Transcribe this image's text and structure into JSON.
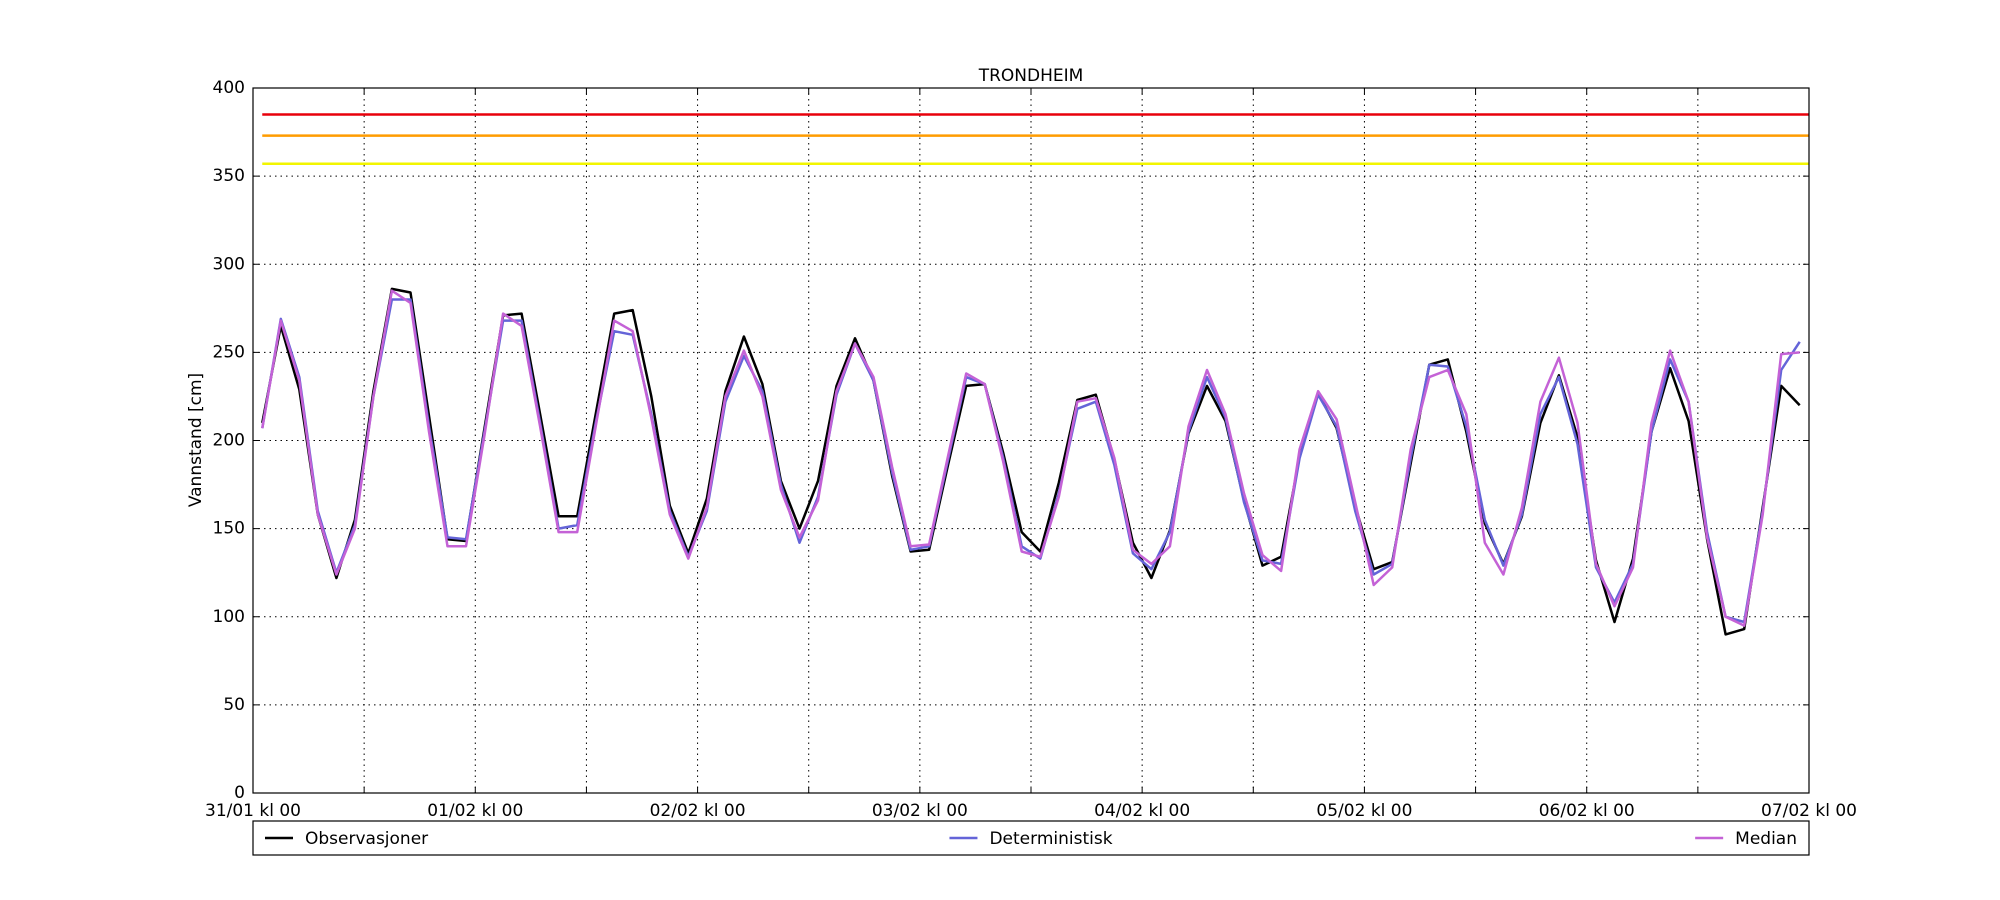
{
  "chart_data": {
    "type": "line",
    "title": "TRONDHEIM",
    "ylabel": "Vannstand [cm]",
    "x": [
      1,
      3,
      5,
      7,
      9,
      11,
      13,
      15,
      17,
      19,
      21,
      23,
      25,
      27,
      29,
      31,
      33,
      35,
      37,
      39,
      41,
      43,
      45,
      47,
      49,
      51,
      53,
      55,
      57,
      59,
      61,
      63,
      65,
      67,
      69,
      71,
      73,
      75,
      77,
      79,
      81,
      83,
      85,
      87,
      89,
      91,
      93,
      95,
      97,
      99,
      101,
      103,
      105,
      107,
      109,
      111,
      113,
      115,
      117,
      119,
      121,
      123,
      125,
      127,
      129,
      131,
      133,
      135,
      137,
      139,
      141,
      143,
      145,
      147,
      149,
      151,
      153,
      155,
      157,
      159,
      161,
      163,
      165,
      167
    ],
    "series": [
      {
        "name": "Observasjoner",
        "color": "#000000",
        "values": [
          210,
          265,
          229,
          158,
          122,
          155,
          228,
          286,
          284,
          214,
          144,
          143,
          207,
          271,
          272,
          215,
          157,
          157,
          215,
          272,
          274,
          225,
          163,
          136,
          167,
          228,
          259,
          232,
          177,
          150,
          177,
          231,
          258,
          234,
          180,
          137,
          138,
          185,
          231,
          232,
          193,
          148,
          137,
          176,
          223,
          226,
          189,
          142,
          122,
          149,
          204,
          231,
          211,
          166,
          129,
          134,
          191,
          227,
          207,
          163,
          127,
          131,
          187,
          243,
          246,
          205,
          153,
          130,
          157,
          210,
          237,
          202,
          132,
          97,
          133,
          205,
          241,
          211,
          144,
          90,
          93,
          162,
          231,
          220
        ]
      },
      {
        "name": "Deterministisk",
        "color": "#6464d8",
        "values": [
          207,
          269,
          236,
          160,
          125,
          152,
          225,
          280,
          280,
          208,
          145,
          144,
          205,
          268,
          268,
          210,
          150,
          152,
          210,
          262,
          260,
          215,
          160,
          134,
          160,
          222,
          248,
          228,
          175,
          142,
          168,
          226,
          255,
          234,
          182,
          138,
          140,
          188,
          236,
          232,
          190,
          140,
          133,
          170,
          218,
          222,
          186,
          136,
          127,
          148,
          205,
          236,
          213,
          165,
          132,
          130,
          190,
          226,
          208,
          160,
          124,
          130,
          190,
          243,
          242,
          208,
          155,
          129,
          158,
          215,
          236,
          198,
          128,
          108,
          130,
          205,
          246,
          222,
          148,
          100,
          97,
          160,
          240,
          256
        ]
      },
      {
        "name": "Median",
        "color": "#c462d6",
        "values": [
          207,
          268,
          234,
          158,
          124,
          150,
          225,
          285,
          278,
          205,
          140,
          140,
          203,
          272,
          265,
          208,
          148,
          148,
          208,
          268,
          262,
          213,
          158,
          133,
          162,
          225,
          251,
          225,
          172,
          145,
          166,
          228,
          255,
          236,
          185,
          140,
          141,
          190,
          238,
          232,
          188,
          137,
          134,
          168,
          222,
          224,
          190,
          138,
          130,
          140,
          208,
          240,
          215,
          170,
          135,
          126,
          195,
          228,
          212,
          165,
          118,
          128,
          195,
          236,
          240,
          215,
          142,
          124,
          162,
          222,
          247,
          210,
          130,
          106,
          128,
          210,
          251,
          222,
          145,
          100,
          95,
          158,
          249,
          250
        ]
      }
    ],
    "thresholds": [
      {
        "value": 385,
        "color": "#e8000b"
      },
      {
        "value": 373,
        "color": "#ff9c00"
      },
      {
        "value": 357,
        "color": "#f2f500"
      }
    ],
    "xlim": [
      0,
      168
    ],
    "xticks": [
      {
        "value": 0,
        "label": "31/01 kl 00"
      },
      {
        "value": 24,
        "label": "01/02 kl 00"
      },
      {
        "value": 48,
        "label": "02/02 kl 00"
      },
      {
        "value": 72,
        "label": "03/02 kl 00"
      },
      {
        "value": 96,
        "label": "04/02 kl 00"
      },
      {
        "value": 120,
        "label": "05/02 kl 00"
      },
      {
        "value": 144,
        "label": "06/02 kl 00"
      },
      {
        "value": 168,
        "label": "07/02 kl 00"
      }
    ],
    "xminor": [
      12,
      36,
      60,
      84,
      108,
      132,
      156
    ],
    "ylim": [
      0,
      400
    ],
    "yticks": [
      0,
      50,
      100,
      150,
      200,
      250,
      300,
      350,
      400
    ],
    "grid": true,
    "legend": "bottom"
  }
}
